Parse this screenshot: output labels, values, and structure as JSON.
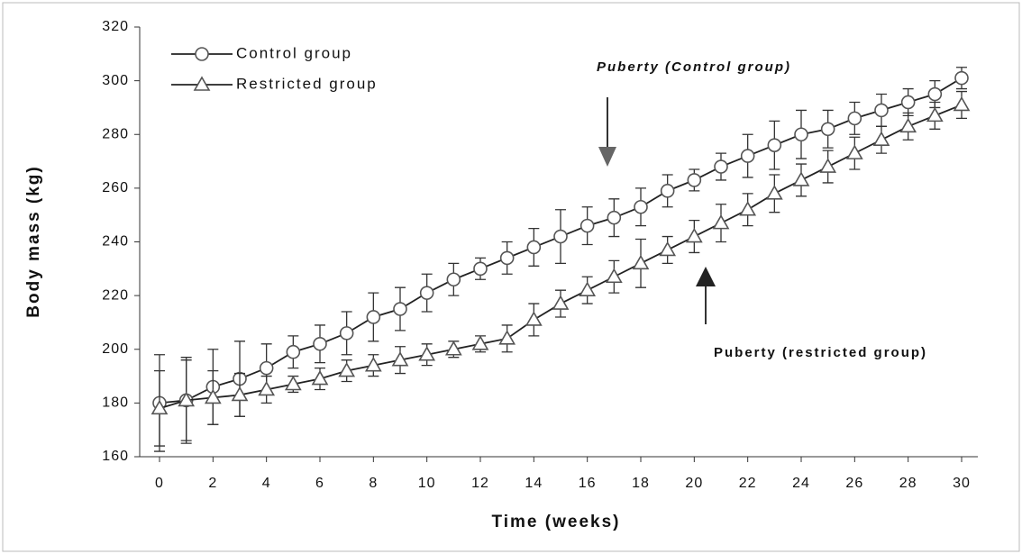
{
  "chart_data": {
    "type": "line",
    "x_label": "Time (weeks)",
    "y_label": "Body mass (kg)",
    "x": [
      0,
      1,
      2,
      3,
      4,
      5,
      6,
      7,
      8,
      9,
      10,
      11,
      12,
      13,
      14,
      15,
      16,
      17,
      18,
      19,
      20,
      21,
      22,
      23,
      24,
      25,
      26,
      27,
      28,
      29,
      30
    ],
    "series": [
      {
        "name": "Control group",
        "marker": "circle",
        "color": "#222222",
        "values": [
          180,
          181,
          186,
          189,
          193,
          199,
          202,
          206,
          212,
          215,
          221,
          226,
          230,
          234,
          238,
          242,
          246,
          249,
          253,
          259,
          263,
          268,
          272,
          276,
          280,
          282,
          286,
          289,
          292,
          295,
          301
        ],
        "errors": [
          18,
          15,
          14,
          14,
          9,
          6,
          7,
          8,
          9,
          8,
          7,
          6,
          4,
          6,
          7,
          10,
          7,
          7,
          7,
          6,
          4,
          5,
          8,
          9,
          9,
          7,
          6,
          6,
          5,
          5,
          4
        ]
      },
      {
        "name": "Restricted group",
        "marker": "triangle",
        "color": "#222222",
        "values": [
          178,
          181,
          182,
          183,
          185,
          187,
          189,
          192,
          194,
          196,
          198,
          200,
          202,
          204,
          211,
          217,
          222,
          227,
          232,
          237,
          242,
          247,
          252,
          258,
          263,
          268,
          273,
          278,
          283,
          287,
          291
        ],
        "errors": [
          14,
          16,
          10,
          8,
          5,
          3,
          4,
          4,
          4,
          5,
          4,
          3,
          3,
          5,
          6,
          5,
          5,
          6,
          9,
          5,
          6,
          7,
          6,
          7,
          6,
          6,
          6,
          5,
          5,
          5,
          5
        ]
      }
    ],
    "annotations": [
      "Puberty (Control group)",
      "Puberty (restricted group)"
    ],
    "xlim": [
      0,
      30
    ],
    "xticks": [
      0,
      2,
      4,
      6,
      8,
      10,
      12,
      14,
      16,
      18,
      20,
      22,
      24,
      26,
      28,
      30
    ],
    "ylim": [
      160,
      320
    ],
    "yticks": [
      160,
      180,
      200,
      220,
      240,
      260,
      280,
      300,
      320
    ],
    "grid": false,
    "legend": "upper left"
  }
}
